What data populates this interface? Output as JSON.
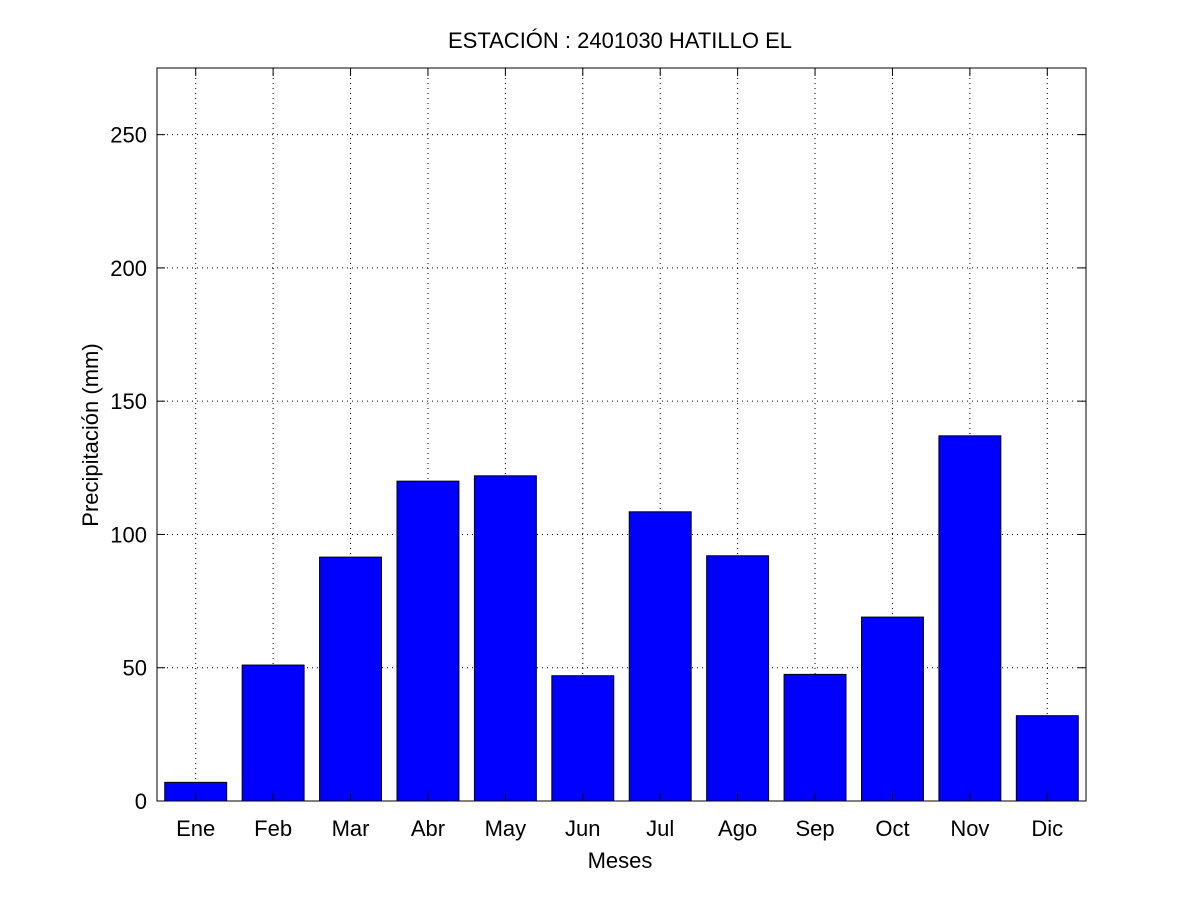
{
  "chart_data": {
    "type": "bar",
    "title": "ESTACIÓN :  2401030  HATILLO EL",
    "xlabel": "Meses",
    "ylabel": "Precipitación (mm)",
    "categories": [
      "Ene",
      "Feb",
      "Mar",
      "Abr",
      "May",
      "Jun",
      "Jul",
      "Ago",
      "Sep",
      "Oct",
      "Nov",
      "Dic"
    ],
    "values": [
      7,
      51,
      91.5,
      120,
      122,
      47,
      108.5,
      92,
      47.5,
      69,
      137,
      32
    ],
    "ylim": [
      0,
      275
    ],
    "yticks": [
      "0",
      "50",
      "100",
      "150",
      "200",
      "250"
    ],
    "grid": true,
    "bar_color": "#0000ff",
    "edge_color": "#000000"
  }
}
